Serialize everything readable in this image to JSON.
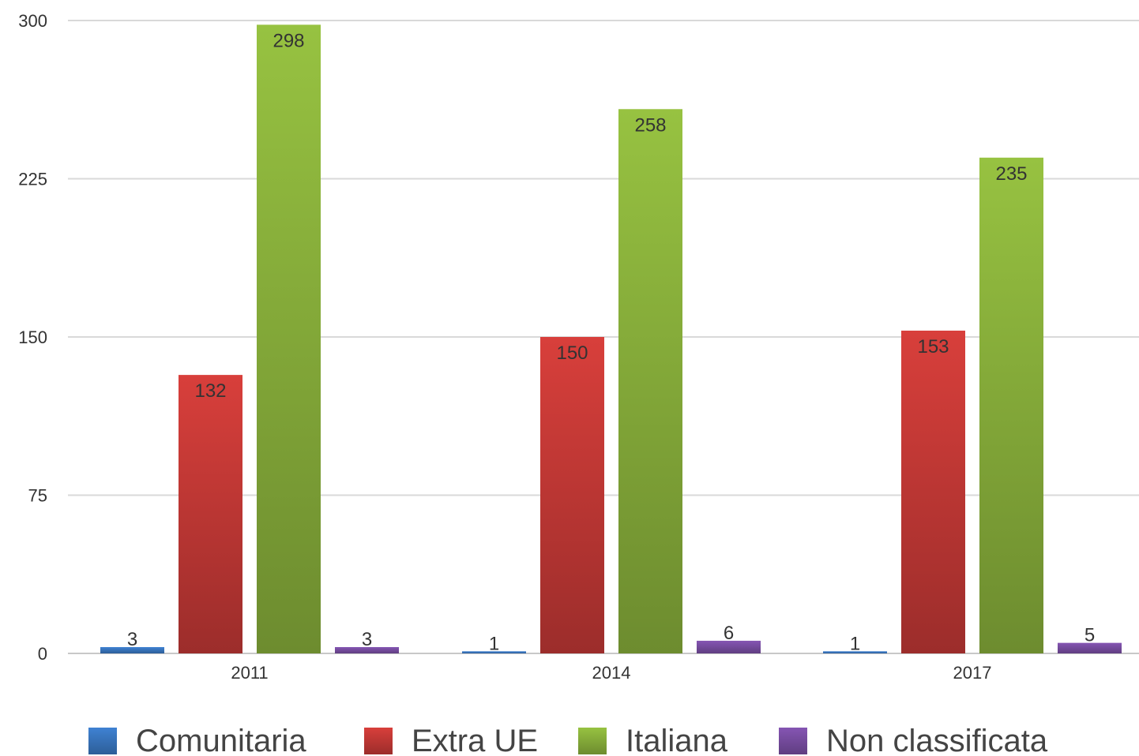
{
  "chart_data": {
    "type": "bar",
    "categories": [
      "2011",
      "2014",
      "2017"
    ],
    "series": [
      {
        "name": "Comunitaria",
        "values": [
          3,
          1,
          1
        ],
        "color": "#3a78c3"
      },
      {
        "name": "Extra UE",
        "values": [
          132,
          150,
          153
        ],
        "color": "#c83a37"
      },
      {
        "name": "Italiana",
        "values": [
          298,
          258,
          235
        ],
        "color": "#8cb43c"
      },
      {
        "name": "Non classificata",
        "values": [
          3,
          6,
          5
        ],
        "color": "#7b4fa6"
      }
    ],
    "yticks": [
      0,
      75,
      150,
      225,
      300
    ],
    "ylim": [
      0,
      300
    ],
    "grid": true,
    "legend_position": "bottom",
    "title": "",
    "xlabel": "",
    "ylabel": ""
  }
}
